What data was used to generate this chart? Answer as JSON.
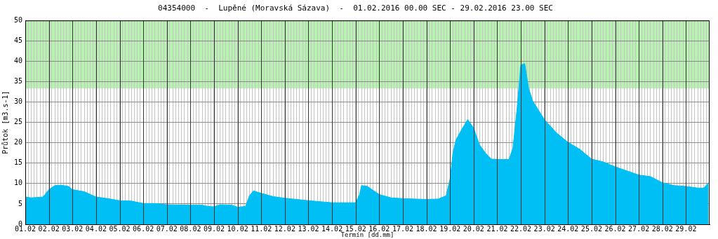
{
  "chart_data": {
    "type": "area",
    "title": "04354000  -  Lupěné (Moravská Sázava)  -  01.02.2016 00.00 SEC - 29.02.2016 23.00 SEC",
    "xlabel": "Termín [dd.mm]",
    "ylabel": "Průtok [m3.s-1]",
    "series": [
      {
        "color": "#00bff5",
        "x": [
          "2016-02-01T00:00",
          "2016-02-01T06:00",
          "2016-02-01T18:00",
          "2016-02-02T00:00",
          "2016-02-02T06:00",
          "2016-02-02T12:00",
          "2016-02-02T20:00",
          "2016-02-03T00:00",
          "2016-02-03T12:00",
          "2016-02-04T00:00",
          "2016-02-04T12:00",
          "2016-02-05T00:00",
          "2016-02-05T12:00",
          "2016-02-06T00:00",
          "2016-02-06T12:00",
          "2016-02-07T00:00",
          "2016-02-08T00:00",
          "2016-02-08T12:00",
          "2016-02-08T18:00",
          "2016-02-09T00:00",
          "2016-02-09T06:00",
          "2016-02-09T18:00",
          "2016-02-10T00:00",
          "2016-02-10T08:00",
          "2016-02-10T12:00",
          "2016-02-10T16:00",
          "2016-02-11T00:00",
          "2016-02-11T12:00",
          "2016-02-12T00:00",
          "2016-02-12T12:00",
          "2016-02-13T00:00",
          "2016-02-14T00:00",
          "2016-02-14T12:00",
          "2016-02-15T00:00",
          "2016-02-15T04:00",
          "2016-02-15T06:00",
          "2016-02-15T12:00",
          "2016-02-16T00:00",
          "2016-02-16T12:00",
          "2016-02-17T00:00",
          "2016-02-18T00:00",
          "2016-02-18T12:00",
          "2016-02-18T20:00",
          "2016-02-19T00:00",
          "2016-02-19T03:00",
          "2016-02-19T06:00",
          "2016-02-19T12:00",
          "2016-02-19T18:00",
          "2016-02-20T00:00",
          "2016-02-20T06:00",
          "2016-02-20T12:00",
          "2016-02-20T18:00",
          "2016-02-21T00:00",
          "2016-02-21T12:00",
          "2016-02-21T16:00",
          "2016-02-21T20:00",
          "2016-02-22T00:00",
          "2016-02-22T04:00",
          "2016-02-22T08:00",
          "2016-02-22T12:00",
          "2016-02-22T18:00",
          "2016-02-23T00:00",
          "2016-02-23T12:00",
          "2016-02-24T00:00",
          "2016-02-24T12:00",
          "2016-02-25T00:00",
          "2016-02-25T12:00",
          "2016-02-26T00:00",
          "2016-02-26T12:00",
          "2016-02-27T00:00",
          "2016-02-27T12:00",
          "2016-02-28T00:00",
          "2016-02-28T12:00",
          "2016-02-29T00:00",
          "2016-02-29T12:00",
          "2016-02-29T18:00",
          "2016-02-29T23:00"
        ],
        "values": [
          6.7,
          6.5,
          6.7,
          8.5,
          9.5,
          9.6,
          9.3,
          8.5,
          8.0,
          6.7,
          6.3,
          5.8,
          5.7,
          5.1,
          5.1,
          4.8,
          4.7,
          4.7,
          4.4,
          4.3,
          4.8,
          4.7,
          4.2,
          4.4,
          7.0,
          8.2,
          7.6,
          6.8,
          6.4,
          6.1,
          5.8,
          5.3,
          5.3,
          5.3,
          7.3,
          9.5,
          9.3,
          7.3,
          6.5,
          6.3,
          6.1,
          6.2,
          7.0,
          11.1,
          17.5,
          20.7,
          23.3,
          25.7,
          23.6,
          19.5,
          17.5,
          16.0,
          15.9,
          15.9,
          18.7,
          28.0,
          39.1,
          39.4,
          33.3,
          30.3,
          28.0,
          25.7,
          22.5,
          20.1,
          18.4,
          16.0,
          15.3,
          14.1,
          13.1,
          12.1,
          11.7,
          10.2,
          9.5,
          9.3,
          8.9,
          8.9,
          10.2
        ]
      }
    ],
    "xlim": [
      "2016-02-01T00:00",
      "2016-03-01T00:00"
    ],
    "xticks": [
      {
        "value": "2016-02-01T00:00",
        "label": "01.02"
      },
      {
        "value": "2016-02-01T03:00",
        "label": null
      },
      {
        "value": "2016-02-01T06:00",
        "label": null
      },
      {
        "value": "2016-02-01T09:00",
        "label": null
      },
      {
        "value": "2016-02-01T12:00",
        "label": null
      },
      {
        "value": "2016-02-01T15:00",
        "label": null
      },
      {
        "value": "2016-02-01T18:00",
        "label": null
      },
      {
        "value": "2016-02-01T21:00",
        "label": null
      },
      {
        "value": "2016-02-02T00:00",
        "label": "02.02"
      },
      {
        "value": "2016-02-02T03:00",
        "label": null
      },
      {
        "value": "2016-02-02T06:00",
        "label": null
      },
      {
        "value": "2016-02-02T09:00",
        "label": null
      },
      {
        "value": "2016-02-02T12:00",
        "label": null
      },
      {
        "value": "2016-02-02T15:00",
        "label": null
      },
      {
        "value": "2016-02-02T18:00",
        "label": null
      },
      {
        "value": "2016-02-02T21:00",
        "label": null
      },
      {
        "value": "2016-02-03T00:00",
        "label": "03.02"
      },
      {
        "value": "2016-02-03T03:00",
        "label": null
      },
      {
        "value": "2016-02-03T06:00",
        "label": null
      },
      {
        "value": "2016-02-03T09:00",
        "label": null
      },
      {
        "value": "2016-02-03T12:00",
        "label": null
      },
      {
        "value": "2016-02-03T15:00",
        "label": null
      },
      {
        "value": "2016-02-03T18:00",
        "label": null
      },
      {
        "value": "2016-02-03T21:00",
        "label": null
      },
      {
        "value": "2016-02-04T00:00",
        "label": "04.02"
      },
      {
        "value": "2016-02-04T03:00",
        "label": null
      },
      {
        "value": "2016-02-04T06:00",
        "label": null
      },
      {
        "value": "2016-02-04T09:00",
        "label": null
      },
      {
        "value": "2016-02-04T12:00",
        "label": null
      },
      {
        "value": "2016-02-04T15:00",
        "label": null
      },
      {
        "value": "2016-02-04T18:00",
        "label": null
      },
      {
        "value": "2016-02-04T21:00",
        "label": null
      },
      {
        "value": "2016-02-05T00:00",
        "label": "05.02"
      },
      {
        "value": "2016-02-05T03:00",
        "label": null
      },
      {
        "value": "2016-02-05T06:00",
        "label": null
      },
      {
        "value": "2016-02-05T09:00",
        "label": null
      },
      {
        "value": "2016-02-05T12:00",
        "label": null
      },
      {
        "value": "2016-02-05T15:00",
        "label": null
      },
      {
        "value": "2016-02-05T18:00",
        "label": null
      },
      {
        "value": "2016-02-05T21:00",
        "label": null
      },
      {
        "value": "2016-02-06T00:00",
        "label": "06.02"
      },
      {
        "value": "2016-02-06T03:00",
        "label": null
      },
      {
        "value": "2016-02-06T06:00",
        "label": null
      },
      {
        "value": "2016-02-06T09:00",
        "label": null
      },
      {
        "value": "2016-02-06T12:00",
        "label": null
      },
      {
        "value": "2016-02-06T15:00",
        "label": null
      },
      {
        "value": "2016-02-06T18:00",
        "label": null
      },
      {
        "value": "2016-02-06T21:00",
        "label": null
      },
      {
        "value": "2016-02-07T00:00",
        "label": "07.02"
      },
      {
        "value": "2016-02-07T03:00",
        "label": null
      },
      {
        "value": "2016-02-07T06:00",
        "label": null
      },
      {
        "value": "2016-02-07T09:00",
        "label": null
      },
      {
        "value": "2016-02-07T12:00",
        "label": null
      },
      {
        "value": "2016-02-07T15:00",
        "label": null
      },
      {
        "value": "2016-02-07T18:00",
        "label": null
      },
      {
        "value": "2016-02-07T21:00",
        "label": null
      },
      {
        "value": "2016-02-08T00:00",
        "label": "08.02"
      },
      {
        "value": "2016-02-08T03:00",
        "label": null
      },
      {
        "value": "2016-02-08T06:00",
        "label": null
      },
      {
        "value": "2016-02-08T09:00",
        "label": null
      },
      {
        "value": "2016-02-08T12:00",
        "label": null
      },
      {
        "value": "2016-02-08T15:00",
        "label": null
      },
      {
        "value": "2016-02-08T18:00",
        "label": null
      },
      {
        "value": "2016-02-08T21:00",
        "label": null
      },
      {
        "value": "2016-02-09T00:00",
        "label": "09.02"
      },
      {
        "value": "2016-02-09T03:00",
        "label": null
      },
      {
        "value": "2016-02-09T06:00",
        "label": null
      },
      {
        "value": "2016-02-09T09:00",
        "label": null
      },
      {
        "value": "2016-02-09T12:00",
        "label": null
      },
      {
        "value": "2016-02-09T15:00",
        "label": null
      },
      {
        "value": "2016-02-09T18:00",
        "label": null
      },
      {
        "value": "2016-02-09T21:00",
        "label": null
      },
      {
        "value": "2016-02-10T00:00",
        "label": "10.02"
      },
      {
        "value": "2016-02-10T03:00",
        "label": null
      },
      {
        "value": "2016-02-10T06:00",
        "label": null
      },
      {
        "value": "2016-02-10T09:00",
        "label": null
      },
      {
        "value": "2016-02-10T12:00",
        "label": null
      },
      {
        "value": "2016-02-10T15:00",
        "label": null
      },
      {
        "value": "2016-02-10T18:00",
        "label": null
      },
      {
        "value": "2016-02-10T21:00",
        "label": null
      },
      {
        "value": "2016-02-11T00:00",
        "label": "11.02"
      },
      {
        "value": "2016-02-11T03:00",
        "label": null
      },
      {
        "value": "2016-02-11T06:00",
        "label": null
      },
      {
        "value": "2016-02-11T09:00",
        "label": null
      },
      {
        "value": "2016-02-11T12:00",
        "label": null
      },
      {
        "value": "2016-02-11T15:00",
        "label": null
      },
      {
        "value": "2016-02-11T18:00",
        "label": null
      },
      {
        "value": "2016-02-11T21:00",
        "label": null
      },
      {
        "value": "2016-02-12T00:00",
        "label": "12.02"
      },
      {
        "value": "2016-02-12T03:00",
        "label": null
      },
      {
        "value": "2016-02-12T06:00",
        "label": null
      },
      {
        "value": "2016-02-12T09:00",
        "label": null
      },
      {
        "value": "2016-02-12T12:00",
        "label": null
      },
      {
        "value": "2016-02-12T15:00",
        "label": null
      },
      {
        "value": "2016-02-12T18:00",
        "label": null
      },
      {
        "value": "2016-02-12T21:00",
        "label": null
      },
      {
        "value": "2016-02-13T00:00",
        "label": "13.02"
      },
      {
        "value": "2016-02-13T03:00",
        "label": null
      },
      {
        "value": "2016-02-13T06:00",
        "label": null
      },
      {
        "value": "2016-02-13T09:00",
        "label": null
      },
      {
        "value": "2016-02-13T12:00",
        "label": null
      },
      {
        "value": "2016-02-13T15:00",
        "label": null
      },
      {
        "value": "2016-02-13T18:00",
        "label": null
      },
      {
        "value": "2016-02-13T21:00",
        "label": null
      },
      {
        "value": "2016-02-14T00:00",
        "label": "14.02"
      },
      {
        "value": "2016-02-14T03:00",
        "label": null
      },
      {
        "value": "2016-02-14T06:00",
        "label": null
      },
      {
        "value": "2016-02-14T09:00",
        "label": null
      },
      {
        "value": "2016-02-14T12:00",
        "label": null
      },
      {
        "value": "2016-02-14T15:00",
        "label": null
      },
      {
        "value": "2016-02-14T18:00",
        "label": null
      },
      {
        "value": "2016-02-14T21:00",
        "label": null
      },
      {
        "value": "2016-02-15T00:00",
        "label": "15.02"
      },
      {
        "value": "2016-02-15T03:00",
        "label": null
      },
      {
        "value": "2016-02-15T06:00",
        "label": null
      },
      {
        "value": "2016-02-15T09:00",
        "label": null
      },
      {
        "value": "2016-02-15T12:00",
        "label": null
      },
      {
        "value": "2016-02-15T15:00",
        "label": null
      },
      {
        "value": "2016-02-15T18:00",
        "label": null
      },
      {
        "value": "2016-02-15T21:00",
        "label": null
      },
      {
        "value": "2016-02-16T00:00",
        "label": "16.02"
      },
      {
        "value": "2016-02-16T03:00",
        "label": null
      },
      {
        "value": "2016-02-16T06:00",
        "label": null
      },
      {
        "value": "2016-02-16T09:00",
        "label": null
      },
      {
        "value": "2016-02-16T12:00",
        "label": null
      },
      {
        "value": "2016-02-16T15:00",
        "label": null
      },
      {
        "value": "2016-02-16T18:00",
        "label": null
      },
      {
        "value": "2016-02-16T21:00",
        "label": null
      },
      {
        "value": "2016-02-17T00:00",
        "label": "17.02"
      },
      {
        "value": "2016-02-17T03:00",
        "label": null
      },
      {
        "value": "2016-02-17T06:00",
        "label": null
      },
      {
        "value": "2016-02-17T09:00",
        "label": null
      },
      {
        "value": "2016-02-17T12:00",
        "label": null
      },
      {
        "value": "2016-02-17T15:00",
        "label": null
      },
      {
        "value": "2016-02-17T18:00",
        "label": null
      },
      {
        "value": "2016-02-17T21:00",
        "label": null
      },
      {
        "value": "2016-02-18T00:00",
        "label": "18.02"
      },
      {
        "value": "2016-02-18T03:00",
        "label": null
      },
      {
        "value": "2016-02-18T06:00",
        "label": null
      },
      {
        "value": "2016-02-18T09:00",
        "label": null
      },
      {
        "value": "2016-02-18T12:00",
        "label": null
      },
      {
        "value": "2016-02-18T15:00",
        "label": null
      },
      {
        "value": "2016-02-18T18:00",
        "label": null
      },
      {
        "value": "2016-02-18T21:00",
        "label": null
      },
      {
        "value": "2016-02-19T00:00",
        "label": "19.02"
      },
      {
        "value": "2016-02-19T03:00",
        "label": null
      },
      {
        "value": "2016-02-19T06:00",
        "label": null
      },
      {
        "value": "2016-02-19T09:00",
        "label": null
      },
      {
        "value": "2016-02-19T12:00",
        "label": null
      },
      {
        "value": "2016-02-19T15:00",
        "label": null
      },
      {
        "value": "2016-02-19T18:00",
        "label": null
      },
      {
        "value": "2016-02-19T21:00",
        "label": null
      },
      {
        "value": "2016-02-20T00:00",
        "label": "20.02"
      },
      {
        "value": "2016-02-20T03:00",
        "label": null
      },
      {
        "value": "2016-02-20T06:00",
        "label": null
      },
      {
        "value": "2016-02-20T09:00",
        "label": null
      },
      {
        "value": "2016-02-20T12:00",
        "label": null
      },
      {
        "value": "2016-02-20T15:00",
        "label": null
      },
      {
        "value": "2016-02-20T18:00",
        "label": null
      },
      {
        "value": "2016-02-20T21:00",
        "label": null
      },
      {
        "value": "2016-02-21T00:00",
        "label": "21.02"
      },
      {
        "value": "2016-02-21T03:00",
        "label": null
      },
      {
        "value": "2016-02-21T06:00",
        "label": null
      },
      {
        "value": "2016-02-21T09:00",
        "label": null
      },
      {
        "value": "2016-02-21T12:00",
        "label": null
      },
      {
        "value": "2016-02-21T15:00",
        "label": null
      },
      {
        "value": "2016-02-21T18:00",
        "label": null
      },
      {
        "value": "2016-02-21T21:00",
        "label": null
      },
      {
        "value": "2016-02-22T00:00",
        "label": "22.02"
      },
      {
        "value": "2016-02-22T03:00",
        "label": null
      },
      {
        "value": "2016-02-22T06:00",
        "label": null
      },
      {
        "value": "2016-02-22T09:00",
        "label": null
      },
      {
        "value": "2016-02-22T12:00",
        "label": null
      },
      {
        "value": "2016-02-22T15:00",
        "label": null
      },
      {
        "value": "2016-02-22T18:00",
        "label": null
      },
      {
        "value": "2016-02-22T21:00",
        "label": null
      },
      {
        "value": "2016-02-23T00:00",
        "label": "23.02"
      },
      {
        "value": "2016-02-23T03:00",
        "label": null
      },
      {
        "value": "2016-02-23T06:00",
        "label": null
      },
      {
        "value": "2016-02-23T09:00",
        "label": null
      },
      {
        "value": "2016-02-23T12:00",
        "label": null
      },
      {
        "value": "2016-02-23T15:00",
        "label": null
      },
      {
        "value": "2016-02-23T18:00",
        "label": null
      },
      {
        "value": "2016-02-23T21:00",
        "label": null
      },
      {
        "value": "2016-02-24T00:00",
        "label": "24.02"
      },
      {
        "value": "2016-02-24T03:00",
        "label": null
      },
      {
        "value": "2016-02-24T06:00",
        "label": null
      },
      {
        "value": "2016-02-24T09:00",
        "label": null
      },
      {
        "value": "2016-02-24T12:00",
        "label": null
      },
      {
        "value": "2016-02-24T15:00",
        "label": null
      },
      {
        "value": "2016-02-24T18:00",
        "label": null
      },
      {
        "value": "2016-02-24T21:00",
        "label": null
      },
      {
        "value": "2016-02-25T00:00",
        "label": "25.02"
      },
      {
        "value": "2016-02-25T03:00",
        "label": null
      },
      {
        "value": "2016-02-25T06:00",
        "label": null
      },
      {
        "value": "2016-02-25T09:00",
        "label": null
      },
      {
        "value": "2016-02-25T12:00",
        "label": null
      },
      {
        "value": "2016-02-25T15:00",
        "label": null
      },
      {
        "value": "2016-02-25T18:00",
        "label": null
      },
      {
        "value": "2016-02-25T21:00",
        "label": null
      },
      {
        "value": "2016-02-26T00:00",
        "label": "26.02"
      },
      {
        "value": "2016-02-26T03:00",
        "label": null
      },
      {
        "value": "2016-02-26T06:00",
        "label": null
      },
      {
        "value": "2016-02-26T09:00",
        "label": null
      },
      {
        "value": "2016-02-26T12:00",
        "label": null
      },
      {
        "value": "2016-02-26T15:00",
        "label": null
      },
      {
        "value": "2016-02-26T18:00",
        "label": null
      },
      {
        "value": "2016-02-26T21:00",
        "label": null
      },
      {
        "value": "2016-02-27T00:00",
        "label": "27.02"
      },
      {
        "value": "2016-02-27T03:00",
        "label": null
      },
      {
        "value": "2016-02-27T06:00",
        "label": null
      },
      {
        "value": "2016-02-27T09:00",
        "label": null
      },
      {
        "value": "2016-02-27T12:00",
        "label": null
      },
      {
        "value": "2016-02-27T15:00",
        "label": null
      },
      {
        "value": "2016-02-27T18:00",
        "label": null
      },
      {
        "value": "2016-02-27T21:00",
        "label": null
      },
      {
        "value": "2016-02-28T00:00",
        "label": "28.02"
      },
      {
        "value": "2016-02-28T03:00",
        "label": null
      },
      {
        "value": "2016-02-28T06:00",
        "label": null
      },
      {
        "value": "2016-02-28T09:00",
        "label": null
      },
      {
        "value": "2016-02-28T12:00",
        "label": null
      },
      {
        "value": "2016-02-28T15:00",
        "label": null
      },
      {
        "value": "2016-02-28T18:00",
        "label": null
      },
      {
        "value": "2016-02-28T21:00",
        "label": null
      },
      {
        "value": "2016-02-29T00:00",
        "label": "29.02"
      },
      {
        "value": "2016-02-29T03:00",
        "label": null
      },
      {
        "value": "2016-02-29T06:00",
        "label": null
      },
      {
        "value": "2016-02-29T09:00",
        "label": null
      },
      {
        "value": "2016-02-29T12:00",
        "label": null
      },
      {
        "value": "2016-02-29T15:00",
        "label": null
      },
      {
        "value": "2016-02-29T18:00",
        "label": null
      },
      {
        "value": "2016-02-29T21:00",
        "label": null
      }
    ],
    "ylim": [
      0,
      50
    ],
    "yticks": [
      0,
      5,
      10,
      15,
      20,
      25,
      30,
      35,
      40,
      45,
      50
    ],
    "bands": [
      {
        "axis": "y",
        "from": 33.3,
        "to": 50,
        "color": "#b8f2b0"
      }
    ],
    "grid": true,
    "legend": false
  }
}
